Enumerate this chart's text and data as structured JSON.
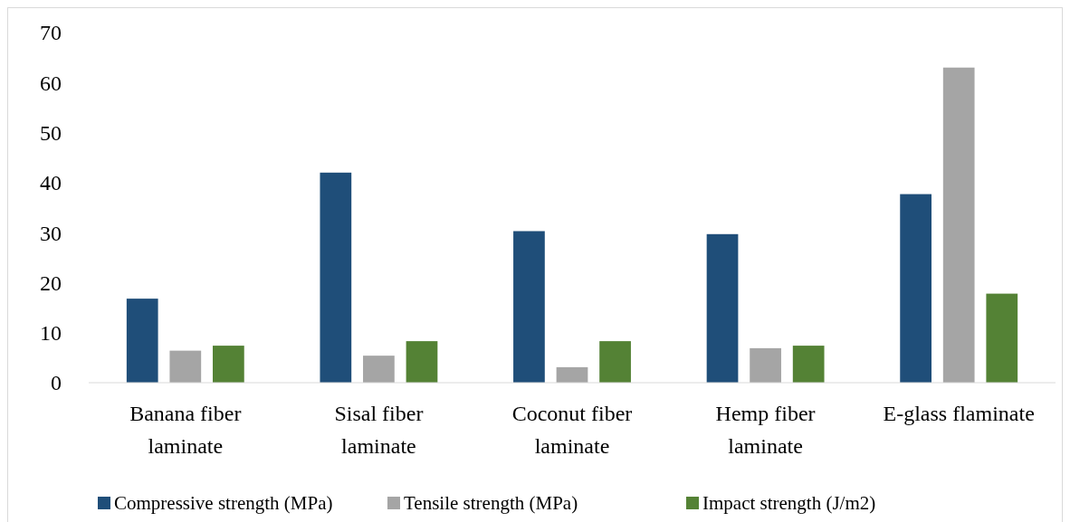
{
  "chart_data": {
    "type": "bar",
    "categories": [
      "Banana fiber laminate",
      "Sisal fiber laminate",
      "Coconut fiber laminate",
      "Hemp fiber laminate",
      "E-glass flaminate"
    ],
    "series": [
      {
        "name": "Compressive strength (MPa)",
        "color": "#1f4e79",
        "values": [
          16.8,
          42,
          30.3,
          29.7,
          37.7
        ]
      },
      {
        "name": "Tensile strength (MPa)",
        "color": "#a5a5a5",
        "values": [
          6.4,
          5.4,
          3.1,
          6.9,
          63
        ]
      },
      {
        "name": "Impact strength (J/m2)",
        "color": "#548235",
        "values": [
          7.4,
          8.3,
          8.3,
          7.4,
          17.8
        ]
      }
    ],
    "ylim": [
      0,
      70
    ],
    "yticks": [
      0,
      10,
      20,
      30,
      40,
      50,
      60,
      70
    ],
    "grid": false,
    "legend": "bottom"
  }
}
